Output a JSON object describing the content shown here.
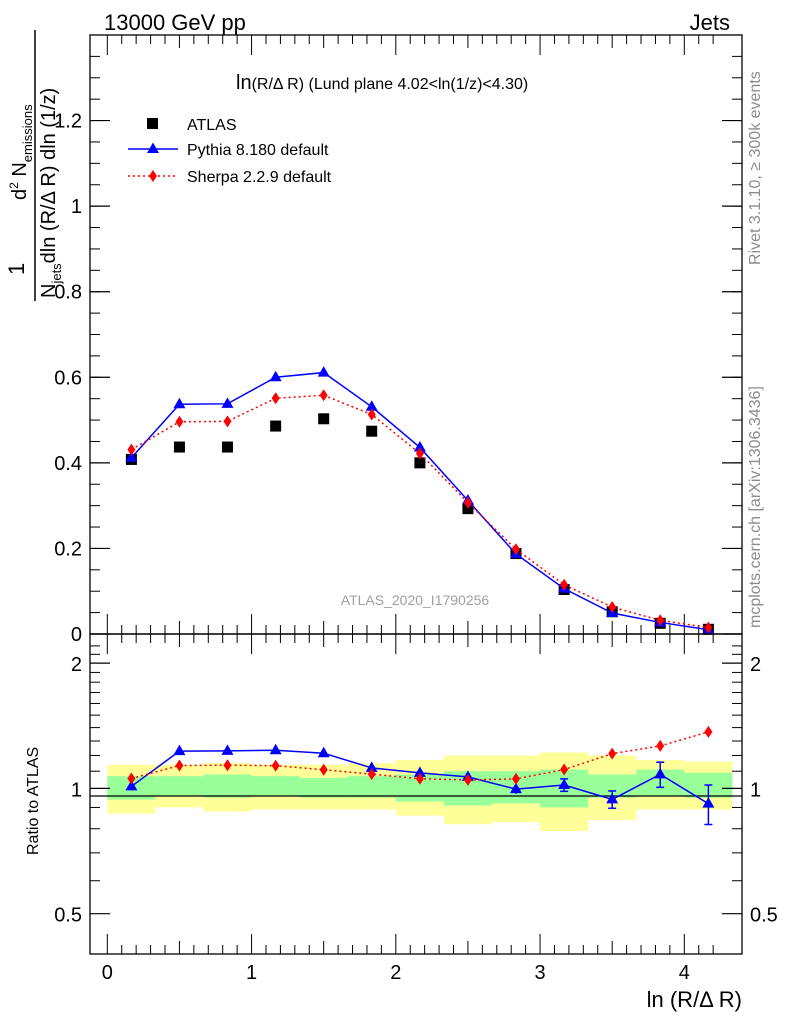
{
  "header": {
    "left": "13000 GeV pp",
    "right": "Jets"
  },
  "side_labels": {
    "rivet": "Rivet 3.1.10, ≥ 300k events",
    "mcplots": "mcplots.cern.ch [arXiv:1306.3436]"
  },
  "chart_data": [
    {
      "type": "scatter",
      "title_main": "ln",
      "title_paren": "(R/Δ R)",
      "title_rest": " (Lund plane 4.02<ln(1/z)<4.30)",
      "watermark": "ATLAS_2020_I1790256",
      "ylabel": {
        "one": "1",
        "njets": "N",
        "njets_sub": "jets",
        "den_rest": "dln (R/Δ R) dln (1/z)",
        "num_d2": "d",
        "num_sup": "2",
        "num_n": " N",
        "num_sub": "emissions"
      },
      "xlim": [
        -0.12,
        4.4
      ],
      "ylim": [
        0,
        1.4
      ],
      "yticks": [
        0,
        0.2,
        0.4,
        0.6,
        0.8,
        1,
        1.2
      ],
      "ytick_labels": [
        "0",
        "0.2",
        "0.4",
        "0.6",
        "0.8",
        "1",
        "1.2"
      ],
      "legend_position": "top-left",
      "x": [
        0.167,
        0.5,
        0.833,
        1.167,
        1.5,
        1.833,
        2.167,
        2.5,
        2.833,
        3.167,
        3.5,
        3.833,
        4.167
      ],
      "series": [
        {
          "name": "ATLAS",
          "color": "#000000",
          "marker": "square",
          "values": [
            0.408,
            0.437,
            0.437,
            0.486,
            0.503,
            0.474,
            0.4,
            0.293,
            0.188,
            0.104,
            0.052,
            0.025,
            0.011
          ]
        },
        {
          "name": "Pythia 8.180 default",
          "color": "#0000ff",
          "marker": "triangle",
          "line": "solid",
          "values": [
            0.412,
            0.537,
            0.538,
            0.6,
            0.611,
            0.531,
            0.436,
            0.312,
            0.187,
            0.106,
            0.049,
            0.027,
            0.01
          ],
          "errors": [
            0.004,
            0.008,
            0.007,
            0.008,
            0.008,
            0.008,
            0.006,
            0.006,
            0.005,
            0.004,
            0.002,
            0.002,
            0.002
          ]
        },
        {
          "name": "Sherpa 2.2.9 default",
          "color": "#ff0000",
          "marker": "diamond",
          "line": "dotted",
          "values": [
            0.431,
            0.496,
            0.497,
            0.551,
            0.558,
            0.513,
            0.422,
            0.307,
            0.198,
            0.115,
            0.063,
            0.032,
            0.015
          ]
        }
      ]
    },
    {
      "type": "scatter",
      "ylabel": "Ratio to ATLAS",
      "xlabel": "ln (R/Δ R)",
      "ylim": [
        0.4,
        2.35
      ],
      "y_scale": "log",
      "yticks_labeled": [
        0.5,
        1,
        2
      ],
      "ytick_labels": [
        "0.5",
        "1",
        "2"
      ],
      "xticks": [
        0,
        1,
        2,
        3,
        4
      ],
      "xtick_labels": [
        "0",
        "1",
        "2",
        "3",
        "4"
      ],
      "x_edges": [
        0,
        0.333,
        0.667,
        1,
        1.333,
        1.667,
        2,
        2.333,
        2.667,
        3,
        3.333,
        3.667,
        4,
        4.333
      ],
      "bands": {
        "inner_color": "#99ff99",
        "outer_color": "#ffff99",
        "inner": [
          [
            0.94,
            1.07
          ],
          [
            0.96,
            1.07
          ],
          [
            0.95,
            1.08
          ],
          [
            0.96,
            1.07
          ],
          [
            0.95,
            1.06
          ],
          [
            0.95,
            1.07
          ],
          [
            0.93,
            1.08
          ],
          [
            0.91,
            1.1
          ],
          [
            0.92,
            1.1
          ],
          [
            0.9,
            1.11
          ],
          [
            0.95,
            1.08
          ],
          [
            0.96,
            1.11
          ],
          [
            0.95,
            1.09
          ]
        ],
        "outer": [
          [
            0.87,
            1.14
          ],
          [
            0.9,
            1.14
          ],
          [
            0.88,
            1.15
          ],
          [
            0.89,
            1.14
          ],
          [
            0.89,
            1.14
          ],
          [
            0.89,
            1.15
          ],
          [
            0.86,
            1.17
          ],
          [
            0.82,
            1.2
          ],
          [
            0.83,
            1.2
          ],
          [
            0.79,
            1.22
          ],
          [
            0.84,
            1.2
          ],
          [
            0.89,
            1.17
          ],
          [
            0.89,
            1.16
          ]
        ]
      },
      "series": [
        {
          "name": "Pythia 8.180 default",
          "color": "#0000ff",
          "marker": "triangle",
          "line": "solid",
          "values": [
            1.011,
            1.229,
            1.231,
            1.235,
            1.215,
            1.12,
            1.09,
            1.066,
            0.996,
            1.019,
            0.941,
            1.081,
            0.919
          ],
          "errors": [
            0.01,
            0.018,
            0.016,
            0.016,
            0.016,
            0.017,
            0.015,
            0.02,
            0.025,
            0.035,
            0.045,
            0.075,
            0.1
          ]
        },
        {
          "name": "Sherpa 2.2.9 default",
          "color": "#ff0000",
          "marker": "diamond",
          "line": "dotted",
          "values": [
            1.056,
            1.135,
            1.137,
            1.134,
            1.109,
            1.082,
            1.055,
            1.048,
            1.054,
            1.11,
            1.212,
            1.265,
            1.367
          ]
        }
      ]
    }
  ]
}
